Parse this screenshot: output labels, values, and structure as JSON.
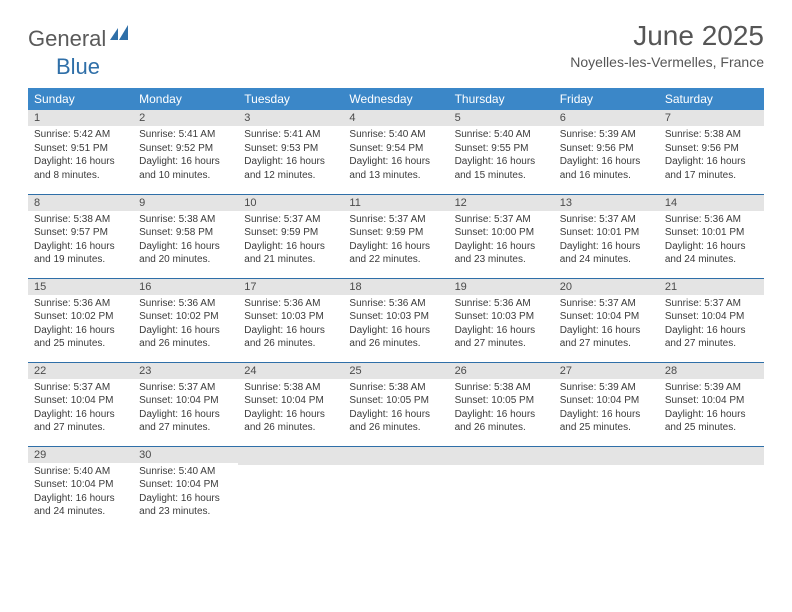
{
  "logo": {
    "general": "General",
    "blue": "Blue"
  },
  "title": "June 2025",
  "location": "Noyelles-les-Vermelles, France",
  "colors": {
    "header_bg": "#3b87c8",
    "header_text": "#ffffff",
    "daynum_bg": "#e4e4e4",
    "rule": "#2f6fa8",
    "logo_gray": "#5a5a5a",
    "logo_blue": "#2f6fa8",
    "title_color": "#565656",
    "body_text": "#3b3b3b"
  },
  "weekdays": [
    "Sunday",
    "Monday",
    "Tuesday",
    "Wednesday",
    "Thursday",
    "Friday",
    "Saturday"
  ],
  "weeks": [
    [
      {
        "n": "1",
        "sr": "Sunrise: 5:42 AM",
        "ss": "Sunset: 9:51 PM",
        "d1": "Daylight: 16 hours",
        "d2": "and 8 minutes."
      },
      {
        "n": "2",
        "sr": "Sunrise: 5:41 AM",
        "ss": "Sunset: 9:52 PM",
        "d1": "Daylight: 16 hours",
        "d2": "and 10 minutes."
      },
      {
        "n": "3",
        "sr": "Sunrise: 5:41 AM",
        "ss": "Sunset: 9:53 PM",
        "d1": "Daylight: 16 hours",
        "d2": "and 12 minutes."
      },
      {
        "n": "4",
        "sr": "Sunrise: 5:40 AM",
        "ss": "Sunset: 9:54 PM",
        "d1": "Daylight: 16 hours",
        "d2": "and 13 minutes."
      },
      {
        "n": "5",
        "sr": "Sunrise: 5:40 AM",
        "ss": "Sunset: 9:55 PM",
        "d1": "Daylight: 16 hours",
        "d2": "and 15 minutes."
      },
      {
        "n": "6",
        "sr": "Sunrise: 5:39 AM",
        "ss": "Sunset: 9:56 PM",
        "d1": "Daylight: 16 hours",
        "d2": "and 16 minutes."
      },
      {
        "n": "7",
        "sr": "Sunrise: 5:38 AM",
        "ss": "Sunset: 9:56 PM",
        "d1": "Daylight: 16 hours",
        "d2": "and 17 minutes."
      }
    ],
    [
      {
        "n": "8",
        "sr": "Sunrise: 5:38 AM",
        "ss": "Sunset: 9:57 PM",
        "d1": "Daylight: 16 hours",
        "d2": "and 19 minutes."
      },
      {
        "n": "9",
        "sr": "Sunrise: 5:38 AM",
        "ss": "Sunset: 9:58 PM",
        "d1": "Daylight: 16 hours",
        "d2": "and 20 minutes."
      },
      {
        "n": "10",
        "sr": "Sunrise: 5:37 AM",
        "ss": "Sunset: 9:59 PM",
        "d1": "Daylight: 16 hours",
        "d2": "and 21 minutes."
      },
      {
        "n": "11",
        "sr": "Sunrise: 5:37 AM",
        "ss": "Sunset: 9:59 PM",
        "d1": "Daylight: 16 hours",
        "d2": "and 22 minutes."
      },
      {
        "n": "12",
        "sr": "Sunrise: 5:37 AM",
        "ss": "Sunset: 10:00 PM",
        "d1": "Daylight: 16 hours",
        "d2": "and 23 minutes."
      },
      {
        "n": "13",
        "sr": "Sunrise: 5:37 AM",
        "ss": "Sunset: 10:01 PM",
        "d1": "Daylight: 16 hours",
        "d2": "and 24 minutes."
      },
      {
        "n": "14",
        "sr": "Sunrise: 5:36 AM",
        "ss": "Sunset: 10:01 PM",
        "d1": "Daylight: 16 hours",
        "d2": "and 24 minutes."
      }
    ],
    [
      {
        "n": "15",
        "sr": "Sunrise: 5:36 AM",
        "ss": "Sunset: 10:02 PM",
        "d1": "Daylight: 16 hours",
        "d2": "and 25 minutes."
      },
      {
        "n": "16",
        "sr": "Sunrise: 5:36 AM",
        "ss": "Sunset: 10:02 PM",
        "d1": "Daylight: 16 hours",
        "d2": "and 26 minutes."
      },
      {
        "n": "17",
        "sr": "Sunrise: 5:36 AM",
        "ss": "Sunset: 10:03 PM",
        "d1": "Daylight: 16 hours",
        "d2": "and 26 minutes."
      },
      {
        "n": "18",
        "sr": "Sunrise: 5:36 AM",
        "ss": "Sunset: 10:03 PM",
        "d1": "Daylight: 16 hours",
        "d2": "and 26 minutes."
      },
      {
        "n": "19",
        "sr": "Sunrise: 5:36 AM",
        "ss": "Sunset: 10:03 PM",
        "d1": "Daylight: 16 hours",
        "d2": "and 27 minutes."
      },
      {
        "n": "20",
        "sr": "Sunrise: 5:37 AM",
        "ss": "Sunset: 10:04 PM",
        "d1": "Daylight: 16 hours",
        "d2": "and 27 minutes."
      },
      {
        "n": "21",
        "sr": "Sunrise: 5:37 AM",
        "ss": "Sunset: 10:04 PM",
        "d1": "Daylight: 16 hours",
        "d2": "and 27 minutes."
      }
    ],
    [
      {
        "n": "22",
        "sr": "Sunrise: 5:37 AM",
        "ss": "Sunset: 10:04 PM",
        "d1": "Daylight: 16 hours",
        "d2": "and 27 minutes."
      },
      {
        "n": "23",
        "sr": "Sunrise: 5:37 AM",
        "ss": "Sunset: 10:04 PM",
        "d1": "Daylight: 16 hours",
        "d2": "and 27 minutes."
      },
      {
        "n": "24",
        "sr": "Sunrise: 5:38 AM",
        "ss": "Sunset: 10:04 PM",
        "d1": "Daylight: 16 hours",
        "d2": "and 26 minutes."
      },
      {
        "n": "25",
        "sr": "Sunrise: 5:38 AM",
        "ss": "Sunset: 10:05 PM",
        "d1": "Daylight: 16 hours",
        "d2": "and 26 minutes."
      },
      {
        "n": "26",
        "sr": "Sunrise: 5:38 AM",
        "ss": "Sunset: 10:05 PM",
        "d1": "Daylight: 16 hours",
        "d2": "and 26 minutes."
      },
      {
        "n": "27",
        "sr": "Sunrise: 5:39 AM",
        "ss": "Sunset: 10:04 PM",
        "d1": "Daylight: 16 hours",
        "d2": "and 25 minutes."
      },
      {
        "n": "28",
        "sr": "Sunrise: 5:39 AM",
        "ss": "Sunset: 10:04 PM",
        "d1": "Daylight: 16 hours",
        "d2": "and 25 minutes."
      }
    ],
    [
      {
        "n": "29",
        "sr": "Sunrise: 5:40 AM",
        "ss": "Sunset: 10:04 PM",
        "d1": "Daylight: 16 hours",
        "d2": "and 24 minutes."
      },
      {
        "n": "30",
        "sr": "Sunrise: 5:40 AM",
        "ss": "Sunset: 10:04 PM",
        "d1": "Daylight: 16 hours",
        "d2": "and 23 minutes."
      },
      {
        "empty": true
      },
      {
        "empty": true
      },
      {
        "empty": true
      },
      {
        "empty": true
      },
      {
        "empty": true
      }
    ]
  ]
}
